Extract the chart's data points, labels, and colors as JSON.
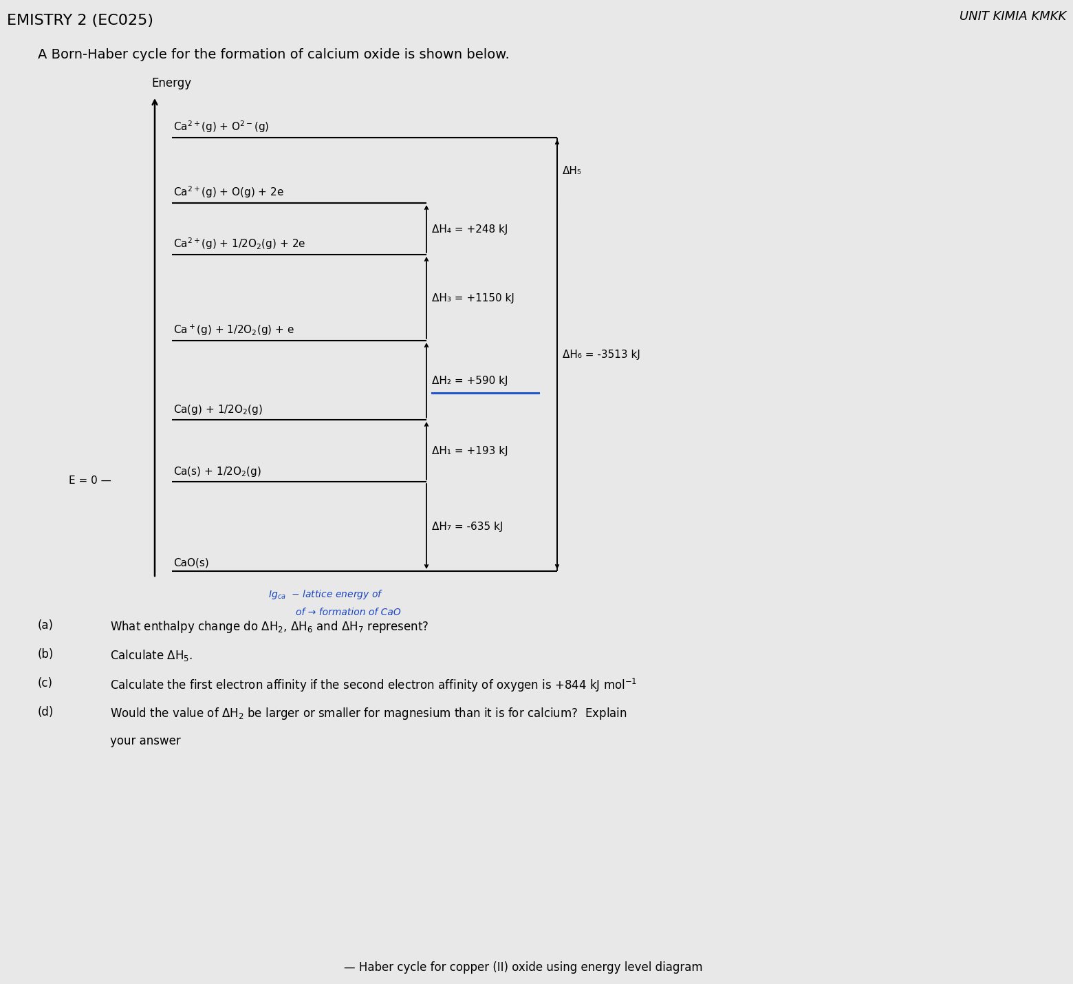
{
  "bg_color": "#e8e8e8",
  "title_top_right": "UNIT KIMIA KMKK",
  "header_text": "EMISTRY 2 (EC025)",
  "intro_text": "A Born-Haber cycle for the formation of calcium oxide is shown below.",
  "energy_label": "Energy",
  "arrow_labels": {
    "dH1": "ΔH₁ = +193 kJ",
    "dH2": "ΔH₂ = +590 kJ",
    "dH3": "ΔH₃ = +1150 kJ",
    "dH4": "ΔH₄ = +248 kJ",
    "dH5": "ΔH₅",
    "dH6": "ΔH₆ = -3513 kJ",
    "dH7": "ΔH₇ = -635 kJ"
  },
  "level_labels": {
    "cao": "CaO(s)",
    "cas_half_o2": "Ca(s) + 1/2O$_2$(g)",
    "cag_half_o2": "Ca(g) + 1/2O$_2$(g)",
    "caplus_half_o2_e": "Ca$^+$(g) + 1/2O$_2$(g) + e",
    "ca2plus_half": "Ca$^{2+}$(g) + 1/2O$_2$(g) + 2e",
    "ca2plus_o": "Ca$^{2+}$(g) + O(g) + 2e",
    "ca2plus_o2minus": "Ca$^{2+}$(g) + O$^{2-}$(g)"
  },
  "e_zero_label": "E = 0",
  "questions": [
    [
      "(a)",
      "What enthalpy change do ΔH$_2$, ΔH$_6$ and ΔH$_7$ represent?"
    ],
    [
      "(b)",
      "Calculate ΔH$_5$."
    ],
    [
      "(c)",
      "Calculate the first electron affinity if the second electron affinity of oxygen is +844 kJ mol$^{-1}$"
    ],
    [
      "(d)",
      "Would the value of ΔH$_2$ be larger or smaller for magnesium than it is for calcium?  Explain"
    ],
    [
      "",
      "your answer"
    ]
  ],
  "bottom_text": "Haber cycle for copper (II) oxide using energy level diagram"
}
